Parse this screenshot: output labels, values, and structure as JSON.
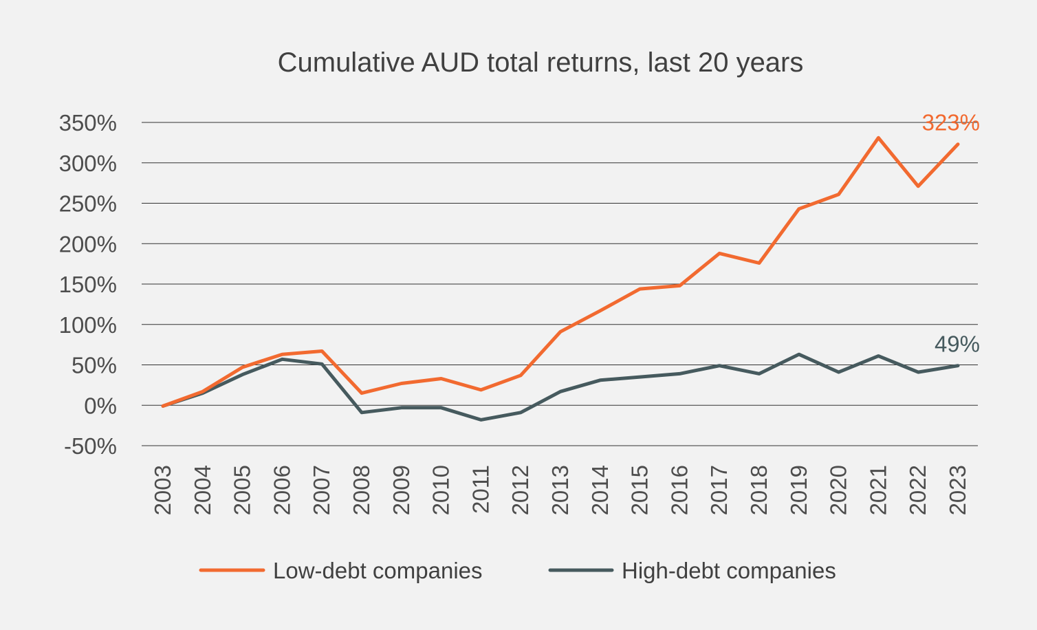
{
  "chart_data": {
    "type": "line",
    "title": "Cumulative AUD total returns, last 20 years",
    "xlabel": "",
    "ylabel": "",
    "ylim": [
      -50,
      350
    ],
    "yticks": [
      -50,
      0,
      50,
      100,
      150,
      200,
      250,
      300,
      350
    ],
    "ytick_labels": [
      "-50%",
      "0%",
      "50%",
      "100%",
      "150%",
      "200%",
      "250%",
      "300%",
      "350%"
    ],
    "categories": [
      "2003",
      "2004",
      "2005",
      "2006",
      "2007",
      "2008",
      "2009",
      "2010",
      "2011",
      "2012",
      "2013",
      "2014",
      "2015",
      "2016",
      "2017",
      "2018",
      "2019",
      "2020",
      "2021",
      "2022",
      "2023"
    ],
    "grid": true,
    "legend_position": "bottom",
    "series": [
      {
        "name": "Low-debt companies",
        "color": "#f26a30",
        "values": [
          -1,
          17,
          47,
          63,
          67,
          15,
          27,
          33,
          19,
          37,
          91,
          117,
          144,
          148,
          188,
          176,
          243,
          261,
          331,
          271,
          323
        ],
        "end_label": "323%"
      },
      {
        "name": "High-debt companies",
        "color": "#465a5e",
        "values": [
          -1,
          15,
          38,
          57,
          51,
          -9,
          -3,
          -3,
          -18,
          -9,
          17,
          31,
          35,
          39,
          49,
          39,
          63,
          41,
          61,
          41,
          49
        ],
        "end_label": "49%"
      }
    ]
  }
}
